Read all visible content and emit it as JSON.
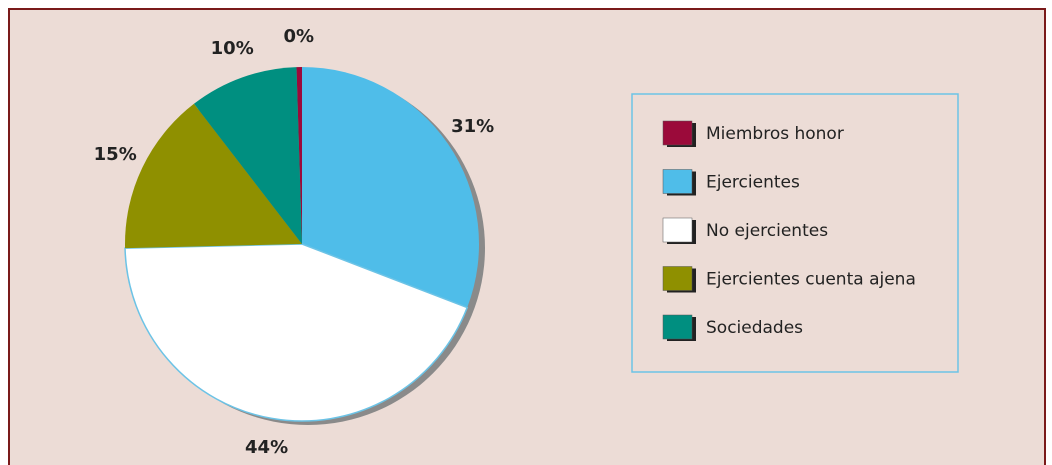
{
  "chart_data": {
    "type": "pie",
    "categories": [
      "Miembros honor",
      "Ejercientes",
      "No ejercientes",
      "Ejercientes cuenta ajena",
      "Sociedades"
    ],
    "values": [
      0.5,
      31,
      44,
      15,
      10
    ],
    "value_labels": [
      "0%",
      "31%",
      "44%",
      "15%",
      "10%"
    ],
    "colors": [
      "#9b0a3a",
      "#4fbde9",
      "#ffffff",
      "#8f9000",
      "#008f80"
    ],
    "legend": "right"
  }
}
